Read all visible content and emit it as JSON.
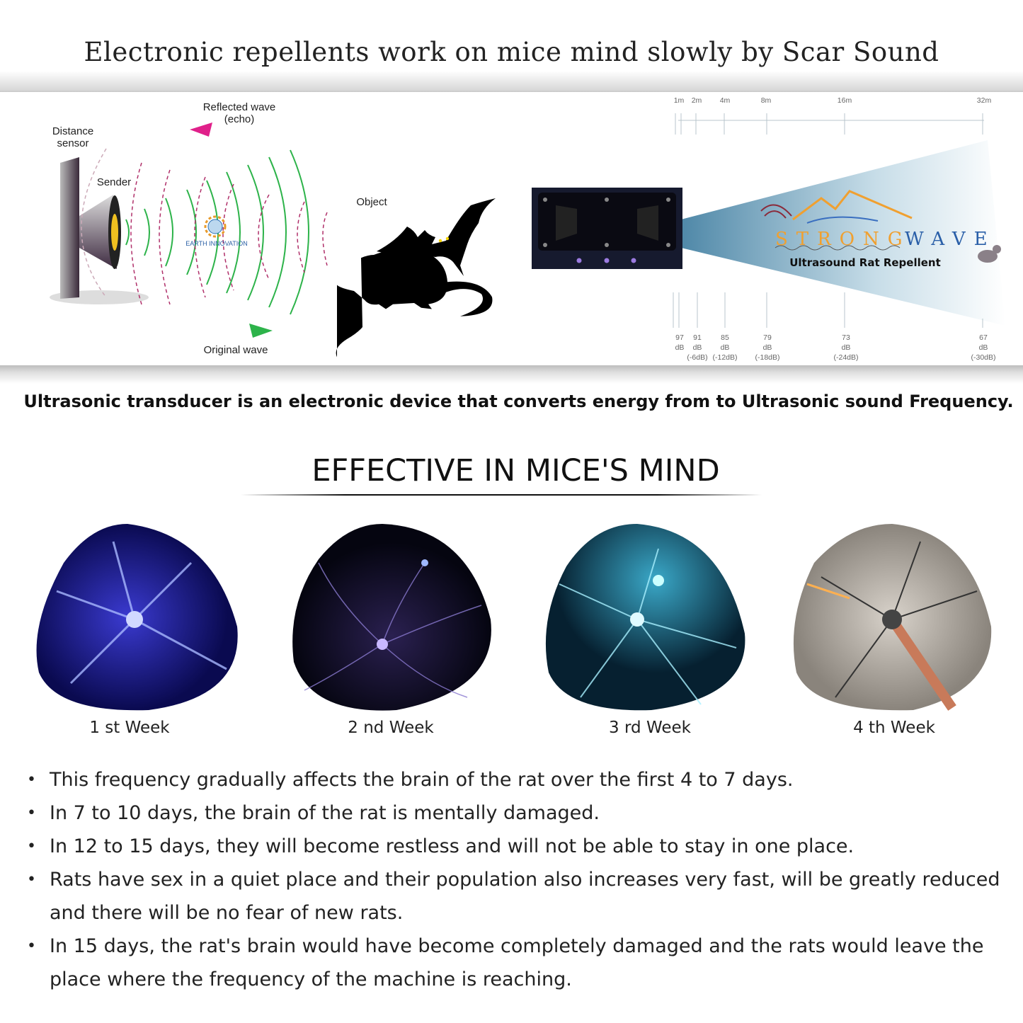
{
  "title": "Electronic repellents work on mice mind slowly by Scar Sound",
  "diagram_left": {
    "distance_sensor": "Distance\nsensor",
    "sender": "Sender",
    "reflected_wave": "Reflected wave\n(echo)",
    "object": "Object",
    "original_wave": "Original wave",
    "watermark": "EARTH INNOVATION",
    "colors": {
      "original_wave": "#2db34a",
      "reflected_wave": "#e0208a"
    }
  },
  "diagram_right": {
    "distances": [
      "1m",
      "2m",
      "4m",
      "8m",
      "16m",
      "32m"
    ],
    "levels": [
      {
        "db": "97",
        "unit": "dB",
        "delta": ""
      },
      {
        "db": "91",
        "unit": "dB",
        "delta": "(-6dB)"
      },
      {
        "db": "85",
        "unit": "dB",
        "delta": "(-12dB)"
      },
      {
        "db": "79",
        "unit": "dB",
        "delta": "(-18dB)"
      },
      {
        "db": "73",
        "unit": "dB",
        "delta": "(-24dB)"
      },
      {
        "db": "67",
        "unit": "dB",
        "delta": "(-30dB)"
      }
    ],
    "brand_word1": "STRONG",
    "brand_word2": "WAVE",
    "brand_tagline": "Ultrasound Rat Repellent"
  },
  "subtitle": "Ultrasonic transducer is an electronic device that converts energy from to Ultrasonic sound Frequency.",
  "section_heading": "EFFECTIVE IN MICE'S MIND",
  "weeks": [
    "1 st Week",
    "2 nd Week",
    "3 rd Week",
    "4 th Week"
  ],
  "bullets": [
    "This frequency gradually affects the brain of the rat over the first 4 to 7 days.",
    "In 7 to 10 days, the brain of the rat is mentally damaged.",
    "In 12 to 15 days, they will become restless and will not be able to stay in one place.",
    "Rats have sex in a quiet place and their population also increases very fast, will be greatly reduced and there will be no fear of new rats.",
    "In 15 days, the rat's brain would have become completely damaged and the rats would leave the place where the frequency of the machine is reaching."
  ]
}
